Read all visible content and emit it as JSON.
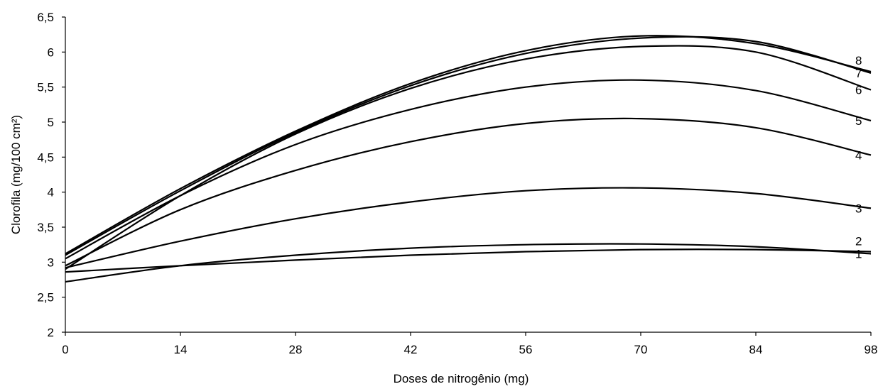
{
  "chart_data": {
    "type": "line",
    "title": "",
    "xlabel": "Doses de nitrogênio (mg)",
    "ylabel": "Clorofila (mg/100 cm²)",
    "xlim": [
      0,
      98
    ],
    "ylim": [
      2,
      6.5
    ],
    "x_ticks": [
      "0",
      "14",
      "28",
      "42",
      "56",
      "70",
      "84",
      "98"
    ],
    "y_ticks": [
      "2",
      "2,5",
      "3",
      "3,5",
      "4",
      "4,5",
      "5",
      "5,5",
      "6",
      "6,5"
    ],
    "x_tick_values": [
      0,
      14,
      28,
      42,
      56,
      70,
      84,
      98
    ],
    "y_tick_values": [
      2,
      2.5,
      3,
      3.5,
      4,
      4.5,
      5,
      5.5,
      6,
      6.5
    ],
    "grid": false,
    "legend": "labels at line ends",
    "line_color": "#000000",
    "series": [
      {
        "label": "1",
        "x": [
          0,
          14,
          28,
          42,
          56,
          70,
          84,
          98
        ],
        "values": [
          2.72,
          2.95,
          3.1,
          3.2,
          3.25,
          3.26,
          3.22,
          3.12
        ]
      },
      {
        "label": "2",
        "x": [
          0,
          14,
          28,
          42,
          56,
          70,
          84,
          98
        ],
        "values": [
          2.86,
          2.95,
          3.03,
          3.1,
          3.15,
          3.18,
          3.18,
          3.15
        ]
      },
      {
        "label": "3",
        "x": [
          0,
          14,
          28,
          42,
          56,
          70,
          84,
          98
        ],
        "values": [
          2.92,
          3.3,
          3.62,
          3.86,
          4.02,
          4.06,
          3.98,
          3.77
        ]
      },
      {
        "label": "4",
        "x": [
          0,
          14,
          28,
          42,
          56,
          70,
          84,
          98
        ],
        "values": [
          2.95,
          3.75,
          4.31,
          4.72,
          4.98,
          5.05,
          4.92,
          4.53
        ]
      },
      {
        "label": "5",
        "x": [
          0,
          14,
          28,
          42,
          56,
          70,
          84,
          98
        ],
        "values": [
          3.05,
          3.95,
          4.68,
          5.18,
          5.5,
          5.6,
          5.45,
          5.02
        ]
      },
      {
        "label": "6",
        "x": [
          0,
          14,
          28,
          42,
          56,
          70,
          84,
          98
        ],
        "values": [
          2.9,
          3.95,
          4.83,
          5.48,
          5.9,
          6.08,
          6.0,
          5.46
        ]
      },
      {
        "label": "7",
        "x": [
          0,
          14,
          28,
          42,
          56,
          70,
          84,
          98
        ],
        "values": [
          3.1,
          4.02,
          4.85,
          5.52,
          5.98,
          6.2,
          6.15,
          5.7
        ]
      },
      {
        "label": "8",
        "x": [
          0,
          14,
          28,
          42,
          56,
          70,
          84,
          98
        ],
        "values": [
          3.12,
          4.05,
          4.87,
          5.55,
          6.02,
          6.23,
          6.12,
          5.72
        ]
      }
    ]
  }
}
